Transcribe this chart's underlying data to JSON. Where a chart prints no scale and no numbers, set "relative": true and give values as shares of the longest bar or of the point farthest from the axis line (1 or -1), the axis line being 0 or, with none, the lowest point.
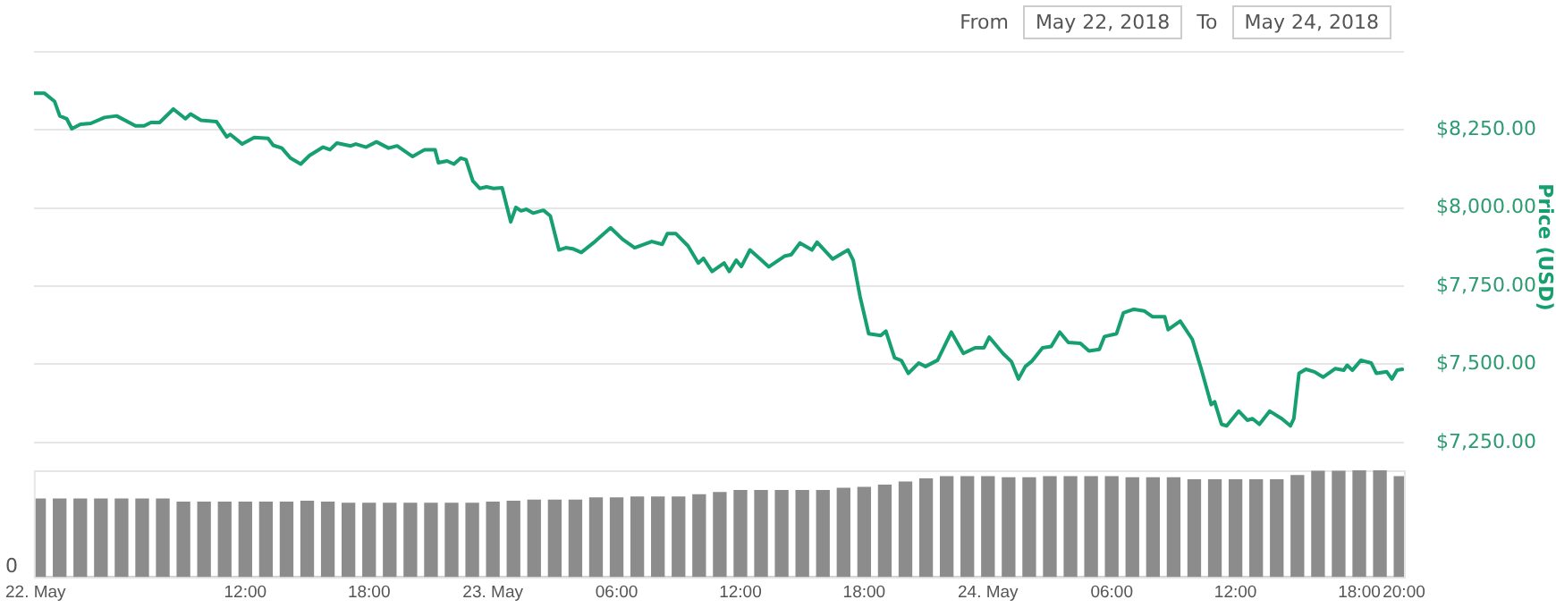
{
  "chart_data": [
    {
      "type": "line",
      "ylabel": "Price (USD)",
      "annotations": [
        "From",
        "May 22, 2018",
        "To",
        "May 24, 2018"
      ],
      "x": [
        "2018-05-22T01:50",
        "2018-05-22T02:20",
        "2018-05-22T02:50",
        "2018-05-22T03:05",
        "2018-05-22T03:25",
        "2018-05-22T03:40",
        "2018-05-22T04:05",
        "2018-05-22T04:35",
        "2018-05-22T05:15",
        "2018-05-22T05:50",
        "2018-05-22T06:45",
        "2018-05-22T07:10",
        "2018-05-22T07:30",
        "2018-05-22T07:55",
        "2018-05-22T08:35",
        "2018-05-22T09:10",
        "2018-05-22T09:25",
        "2018-05-22T09:55",
        "2018-05-22T10:40",
        "2018-05-22T11:10",
        "2018-05-22T11:20",
        "2018-05-22T11:55",
        "2018-05-22T12:30",
        "2018-05-22T13:10",
        "2018-05-22T13:25",
        "2018-05-22T13:50",
        "2018-05-22T14:15",
        "2018-05-22T14:45",
        "2018-05-22T15:10",
        "2018-05-22T15:50",
        "2018-05-22T16:10",
        "2018-05-22T16:30",
        "2018-05-22T17:10",
        "2018-05-22T17:25",
        "2018-05-22T17:55",
        "2018-05-22T18:25",
        "2018-05-22T19:00",
        "2018-05-22T19:25",
        "2018-05-22T20:10",
        "2018-05-22T20:45",
        "2018-05-22T21:15",
        "2018-05-22T21:25",
        "2018-05-22T21:50",
        "2018-05-22T22:10",
        "2018-05-22T22:30",
        "2018-05-22T22:45",
        "2018-05-22T23:05",
        "2018-05-22T23:25",
        "2018-05-22T23:45",
        "2018-05-23T00:05",
        "2018-05-23T00:30",
        "2018-05-23T00:55",
        "2018-05-23T01:10",
        "2018-05-23T01:25",
        "2018-05-23T01:40",
        "2018-05-23T02:00",
        "2018-05-23T02:30",
        "2018-05-23T02:50",
        "2018-05-23T03:15",
        "2018-05-23T03:35",
        "2018-05-23T03:55",
        "2018-05-23T04:20",
        "2018-05-23T05:00",
        "2018-05-23T05:45",
        "2018-05-23T06:20",
        "2018-05-23T06:55",
        "2018-05-23T07:45",
        "2018-05-23T08:15",
        "2018-05-23T08:30",
        "2018-05-23T08:55",
        "2018-05-23T09:30",
        "2018-05-23T10:00",
        "2018-05-23T10:15",
        "2018-05-23T10:40",
        "2018-05-23T11:15",
        "2018-05-23T11:30",
        "2018-05-23T11:50",
        "2018-05-23T12:05",
        "2018-05-23T12:30",
        "2018-05-23T13:00",
        "2018-05-23T13:25",
        "2018-05-23T14:10",
        "2018-05-23T14:30",
        "2018-05-23T14:55",
        "2018-05-23T15:30",
        "2018-05-23T15:45",
        "2018-05-23T16:30",
        "2018-05-23T17:15",
        "2018-05-23T17:30",
        "2018-05-23T17:50",
        "2018-05-23T18:15",
        "2018-05-23T18:50",
        "2018-05-23T19:05",
        "2018-05-23T19:30",
        "2018-05-23T19:50",
        "2018-05-23T20:10",
        "2018-05-23T20:40",
        "2018-05-23T21:00",
        "2018-05-23T21:35",
        "2018-05-23T22:15",
        "2018-05-23T22:50",
        "2018-05-23T23:25",
        "2018-05-23T23:50",
        "2018-05-24T00:05",
        "2018-05-24T00:45",
        "2018-05-24T01:10",
        "2018-05-24T01:30",
        "2018-05-24T01:50",
        "2018-05-24T02:10",
        "2018-05-24T02:40",
        "2018-05-24T03:05",
        "2018-05-24T03:30",
        "2018-05-24T03:55",
        "2018-05-24T04:30",
        "2018-05-24T04:55",
        "2018-05-24T05:25",
        "2018-05-24T05:40",
        "2018-05-24T06:15",
        "2018-05-24T06:35",
        "2018-05-24T07:05",
        "2018-05-24T07:35",
        "2018-05-24T08:00",
        "2018-05-24T08:35",
        "2018-05-24T08:45",
        "2018-05-24T09:20",
        "2018-05-24T09:55",
        "2018-05-24T10:20",
        "2018-05-24T10:50",
        "2018-05-24T11:00",
        "2018-05-24T11:20",
        "2018-05-24T11:35",
        "2018-05-24T12:10",
        "2018-05-24T12:35",
        "2018-05-24T12:50",
        "2018-05-24T13:10",
        "2018-05-24T13:40",
        "2018-05-24T14:15",
        "2018-05-24T14:40",
        "2018-05-24T14:50",
        "2018-05-24T15:05",
        "2018-05-24T15:25",
        "2018-05-24T15:50",
        "2018-05-24T16:15",
        "2018-05-24T16:50",
        "2018-05-24T17:15",
        "2018-05-24T17:25",
        "2018-05-24T17:40",
        "2018-05-24T18:05",
        "2018-05-24T18:35",
        "2018-05-24T18:50",
        "2018-05-24T19:20",
        "2018-05-24T19:35",
        "2018-05-24T19:50",
        "2018-05-24T20:05"
      ],
      "series": [
        {
          "color": "#16a06f",
          "values": [
            8368,
            8368,
            8341,
            8295,
            8286,
            8254,
            8268,
            8271,
            8290,
            8295,
            8263,
            8263,
            8274,
            8274,
            8317,
            8286,
            8301,
            8281,
            8277,
            8228,
            8236,
            8205,
            8226,
            8223,
            8201,
            8192,
            8160,
            8141,
            8168,
            8195,
            8187,
            8208,
            8199,
            8205,
            8195,
            8212,
            8192,
            8199,
            8165,
            8187,
            8187,
            8145,
            8151,
            8141,
            8160,
            8155,
            8087,
            8063,
            8068,
            8063,
            8065,
            7956,
            8002,
            7991,
            7996,
            7984,
            7993,
            7975,
            7866,
            7873,
            7870,
            7858,
            7893,
            7937,
            7900,
            7873,
            7893,
            7884,
            7918,
            7918,
            7879,
            7824,
            7839,
            7797,
            7824,
            7797,
            7833,
            7813,
            7866,
            7837,
            7812,
            7846,
            7851,
            7888,
            7866,
            7891,
            7837,
            7866,
            7833,
            7716,
            7598,
            7592,
            7606,
            7521,
            7512,
            7471,
            7504,
            7493,
            7513,
            7603,
            7535,
            7553,
            7553,
            7587,
            7535,
            7508,
            7453,
            7493,
            7511,
            7553,
            7557,
            7603,
            7570,
            7567,
            7543,
            7548,
            7589,
            7598,
            7665,
            7676,
            7671,
            7652,
            7652,
            7611,
            7638,
            7580,
            7489,
            7371,
            7380,
            7308,
            7303,
            7350,
            7321,
            7326,
            7308,
            7350,
            7326,
            7303,
            7326,
            7471,
            7484,
            7476,
            7459,
            7486,
            7481,
            7497,
            7481,
            7513,
            7504,
            7471,
            7476,
            7453,
            7481,
            7484
          ]
        }
      ],
      "xlim": [
        "2018-05-22T01:50",
        "2018-05-24T20:10"
      ],
      "ylim": [
        7250,
        8500
      ],
      "yticks": [
        {
          "value": 7250,
          "label": "$7,250.00"
        },
        {
          "value": 7500,
          "label": "$7,500.00"
        },
        {
          "value": 7750,
          "label": "$7,750.00"
        },
        {
          "value": 8000,
          "label": "$8,000.00"
        },
        {
          "value": 8250,
          "label": "$8,250.00"
        },
        {
          "value": 8500,
          "label": null
        }
      ],
      "grid": "y",
      "tick_labels": "y",
      "marker": "none",
      "legend": false
    },
    {
      "type": "bar",
      "relative": true,
      "annotations": [
        "0"
      ],
      "x": [
        "2018-05-22T02:00",
        "2018-05-22T03:00",
        "2018-05-22T04:00",
        "2018-05-22T05:00",
        "2018-05-22T06:00",
        "2018-05-22T07:00",
        "2018-05-22T08:00",
        "2018-05-22T09:00",
        "2018-05-22T10:00",
        "2018-05-22T11:00",
        "2018-05-22T12:00",
        "2018-05-22T13:00",
        "2018-05-22T14:00",
        "2018-05-22T15:00",
        "2018-05-22T16:00",
        "2018-05-22T17:00",
        "2018-05-22T18:00",
        "2018-05-22T19:00",
        "2018-05-22T20:00",
        "2018-05-22T21:00",
        "2018-05-22T22:00",
        "2018-05-22T23:00",
        "2018-05-23T00:00",
        "2018-05-23T01:00",
        "2018-05-23T02:00",
        "2018-05-23T03:00",
        "2018-05-23T04:00",
        "2018-05-23T05:00",
        "2018-05-23T06:00",
        "2018-05-23T07:00",
        "2018-05-23T08:00",
        "2018-05-23T09:00",
        "2018-05-23T10:00",
        "2018-05-23T11:00",
        "2018-05-23T12:00",
        "2018-05-23T13:00",
        "2018-05-23T14:00",
        "2018-05-23T15:00",
        "2018-05-23T16:00",
        "2018-05-23T17:00",
        "2018-05-23T18:00",
        "2018-05-23T19:00",
        "2018-05-23T20:00",
        "2018-05-23T21:00",
        "2018-05-23T22:00",
        "2018-05-23T23:00",
        "2018-05-24T00:00",
        "2018-05-24T01:00",
        "2018-05-24T02:00",
        "2018-05-24T03:00",
        "2018-05-24T04:00",
        "2018-05-24T05:00",
        "2018-05-24T06:00",
        "2018-05-24T07:00",
        "2018-05-24T08:00",
        "2018-05-24T09:00",
        "2018-05-24T10:00",
        "2018-05-24T11:00",
        "2018-05-24T12:00",
        "2018-05-24T13:00",
        "2018-05-24T14:00",
        "2018-05-24T15:00",
        "2018-05-24T16:00",
        "2018-05-24T17:00",
        "2018-05-24T18:00",
        "2018-05-24T19:00",
        "2018-05-24T20:00"
      ],
      "values": [
        0.73,
        0.73,
        0.73,
        0.73,
        0.73,
        0.73,
        0.73,
        0.7,
        0.7,
        0.7,
        0.7,
        0.7,
        0.7,
        0.71,
        0.7,
        0.69,
        0.69,
        0.69,
        0.69,
        0.69,
        0.69,
        0.69,
        0.7,
        0.71,
        0.72,
        0.72,
        0.72,
        0.74,
        0.74,
        0.75,
        0.75,
        0.75,
        0.77,
        0.79,
        0.81,
        0.81,
        0.81,
        0.81,
        0.81,
        0.83,
        0.84,
        0.86,
        0.89,
        0.92,
        0.94,
        0.94,
        0.94,
        0.93,
        0.93,
        0.94,
        0.94,
        0.94,
        0.94,
        0.93,
        0.93,
        0.93,
        0.91,
        0.91,
        0.91,
        0.91,
        0.91,
        0.95,
        0.99,
        0.99,
        1,
        1,
        0.94
      ],
      "color": "#8c8c8c",
      "xlim": [
        "2018-05-22T01:50",
        "2018-05-24T20:10"
      ],
      "xticks": [
        {
          "value": "2018-05-22T01:50",
          "label": "22. May"
        },
        {
          "value": "2018-05-22T12:00",
          "label": "12:00"
        },
        {
          "value": "2018-05-22T18:00",
          "label": "18:00"
        },
        {
          "value": "2018-05-23T00:00",
          "label": "23. May"
        },
        {
          "value": "2018-05-23T06:00",
          "label": "06:00"
        },
        {
          "value": "2018-05-23T12:00",
          "label": "12:00"
        },
        {
          "value": "2018-05-23T18:00",
          "label": "18:00"
        },
        {
          "value": "2018-05-24T00:00",
          "label": "24. May"
        },
        {
          "value": "2018-05-24T06:00",
          "label": "06:00"
        },
        {
          "value": "2018-05-24T12:00",
          "label": "12:00"
        },
        {
          "value": "2018-05-24T18:00",
          "label": "18:00"
        },
        {
          "value": "2018-05-24T20:10",
          "label": "20:00"
        }
      ],
      "tick_labels": "x",
      "legend": false
    }
  ]
}
